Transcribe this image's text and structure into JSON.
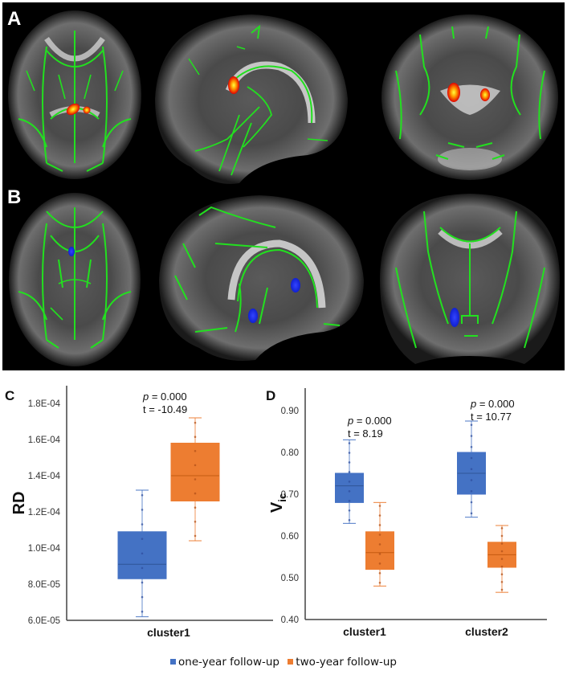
{
  "panels": {
    "A": {
      "label": "A",
      "description": "red-yellow clusters (increased RD)"
    },
    "B": {
      "label": "B",
      "description": "blue clusters"
    },
    "C": {
      "label": "C"
    },
    "D": {
      "label": "D"
    }
  },
  "colors": {
    "one_year": "#4472C4",
    "two_year": "#ED7D31",
    "tract": "#22e01f",
    "cluster_hot": "#ff2a00",
    "cluster_blue": "#1a2bff"
  },
  "legend": {
    "items": [
      {
        "label": "one-year follow-up",
        "color": "#4472C4"
      },
      {
        "label": "two-year follow-up",
        "color": "#ED7D31"
      }
    ]
  },
  "chart_data": [
    {
      "type": "box",
      "panel": "C",
      "title": "",
      "xlabel": "",
      "ylabel": "RD",
      "ylim": [
        6e-05,
        0.00018
      ],
      "yticks": [
        "6.0E-05",
        "8.0E-05",
        "1.0E-04",
        "1.2E-04",
        "1.4E-04",
        "1.6E-04",
        "1.8E-04"
      ],
      "categories": [
        "cluster1"
      ],
      "annotations": [
        {
          "category": "cluster1",
          "p": "p = 0.000",
          "t": "t = -10.49"
        }
      ],
      "series": [
        {
          "name": "one-year follow-up",
          "boxes": [
            {
              "min": 6.2e-05,
              "q1": 8.3e-05,
              "median": 9.1e-05,
              "q3": 0.000109,
              "max": 0.000132
            }
          ]
        },
        {
          "name": "two-year follow-up",
          "boxes": [
            {
              "min": 0.000104,
              "q1": 0.000126,
              "median": 0.00014,
              "q3": 0.000158,
              "max": 0.000172
            }
          ]
        }
      ],
      "legend_position": "bottom",
      "grid": false
    },
    {
      "type": "box",
      "panel": "D",
      "title": "",
      "xlabel": "",
      "ylabel": "Vic",
      "ylim": [
        0.4,
        0.9
      ],
      "yticks": [
        "0.40",
        "0.50",
        "0.60",
        "0.70",
        "0.80",
        "0.90"
      ],
      "categories": [
        "cluster1",
        "cluster2"
      ],
      "annotations": [
        {
          "category": "cluster1",
          "p": "p = 0.000",
          "t": "t = 8.19"
        },
        {
          "category": "cluster2",
          "p": "p = 0.000",
          "t": "t = 10.77"
        }
      ],
      "series": [
        {
          "name": "one-year follow-up",
          "boxes": [
            {
              "min": 0.63,
              "q1": 0.68,
              "median": 0.72,
              "q3": 0.75,
              "max": 0.83
            },
            {
              "min": 0.645,
              "q1": 0.7,
              "median": 0.75,
              "q3": 0.8,
              "max": 0.875
            }
          ]
        },
        {
          "name": "two-year follow-up",
          "boxes": [
            {
              "min": 0.48,
              "q1": 0.52,
              "median": 0.56,
              "q3": 0.61,
              "max": 0.68
            },
            {
              "min": 0.465,
              "q1": 0.525,
              "median": 0.555,
              "q3": 0.585,
              "max": 0.625
            }
          ]
        }
      ],
      "legend_position": "bottom",
      "grid": false
    }
  ]
}
